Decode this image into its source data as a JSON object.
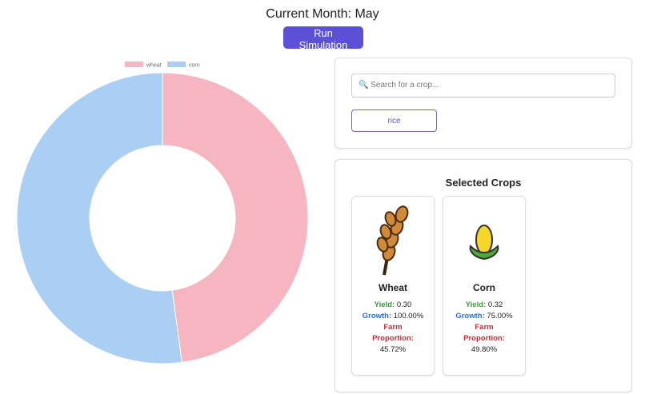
{
  "header": {
    "title": "Current Month: May",
    "button": "Run Simulation"
  },
  "chart_data": {
    "type": "doughnut",
    "categories": [
      "wheat",
      "corn"
    ],
    "values": [
      45.72,
      49.8
    ],
    "colors": [
      "#f5b5c1",
      "#aacff3"
    ],
    "legend": "top"
  },
  "search": {
    "placeholder": "🔍 Search for a crop...",
    "suggestions": [
      "rice"
    ]
  },
  "selected": {
    "title": "Selected Crops",
    "labels": {
      "yield": "Yield:",
      "growth": "Growth:",
      "proportion": "Farm Proportion:"
    },
    "crops": [
      {
        "name": "Wheat",
        "yield": "0.30",
        "growth": "100.00%",
        "proportion": "45.72%"
      },
      {
        "name": "Corn",
        "yield": "0.32",
        "growth": "75.00%",
        "proportion": "49.80%"
      }
    ]
  }
}
